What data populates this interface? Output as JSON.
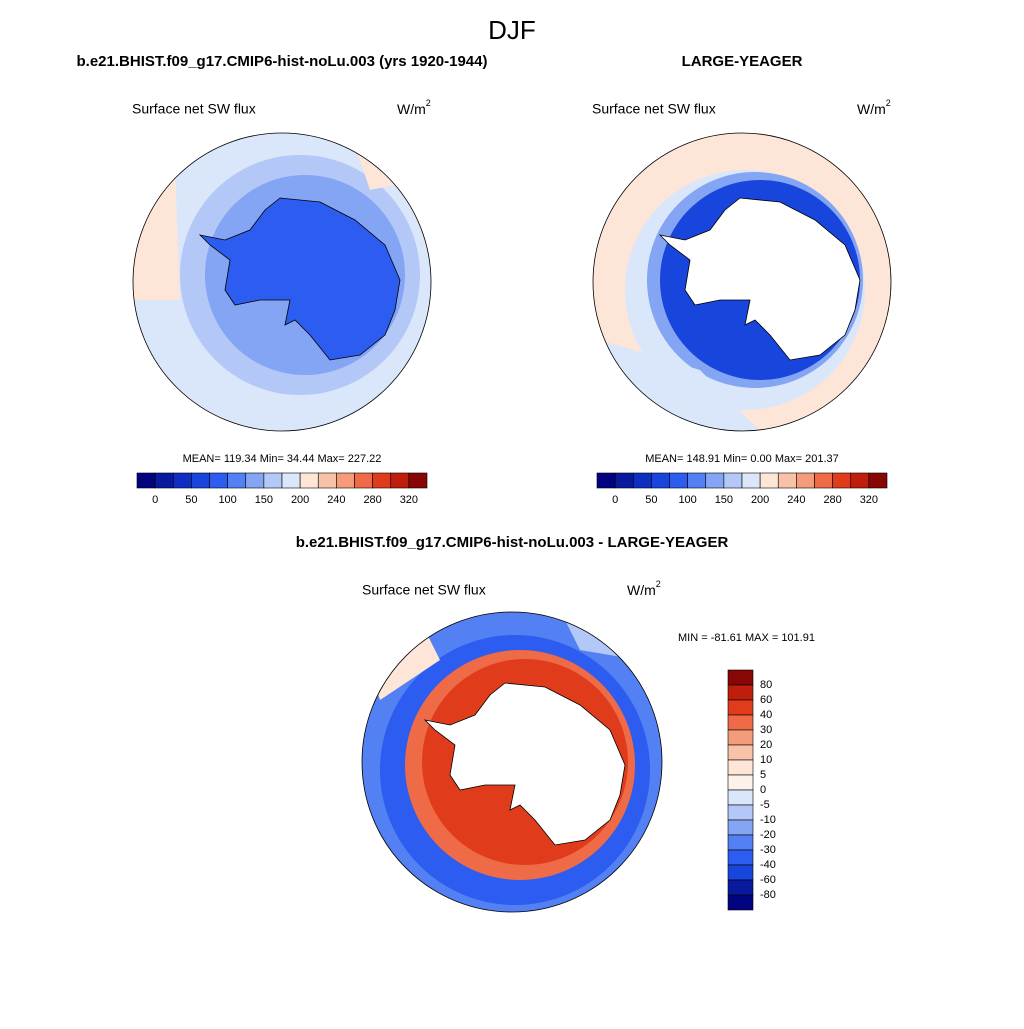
{
  "title": "DJF",
  "panels": [
    {
      "title": "b.e21.BHIST.f09_g17.CMIP6-hist-noLu.003 (yrs 1920-1944)",
      "subtitle": "Surface net SW flux",
      "units": "W/m",
      "units_exp": "2",
      "stats": "MEAN= 119.34  Min=  34.44  Max= 227.22",
      "colorbar": {
        "orientation": "horizontal",
        "labels": [
          0,
          50,
          100,
          150,
          200,
          240,
          280,
          320
        ],
        "colors": [
          "#02037f",
          "#0a1a9e",
          "#0f2fc2",
          "#1846dc",
          "#2c5cf0",
          "#5380f2",
          "#84a4f4",
          "#b4c8f8",
          "#dae6fa",
          "#fde6d8",
          "#f8c2a8",
          "#f49c7a",
          "#ef6a46",
          "#e03c1c",
          "#bf1e0c",
          "#870707"
        ]
      }
    },
    {
      "title": "LARGE-YEAGER",
      "subtitle": "Surface net SW flux",
      "units": "W/m",
      "units_exp": "2",
      "stats": "MEAN= 148.91  Min=   0.00  Max= 201.37",
      "colorbar": {
        "orientation": "horizontal",
        "labels": [
          0,
          50,
          100,
          150,
          200,
          240,
          280,
          320
        ],
        "colors": [
          "#02037f",
          "#0a1a9e",
          "#0f2fc2",
          "#1846dc",
          "#2c5cf0",
          "#5380f2",
          "#84a4f4",
          "#b4c8f8",
          "#dae6fa",
          "#fde6d8",
          "#f8c2a8",
          "#f49c7a",
          "#ef6a46",
          "#e03c1c",
          "#bf1e0c",
          "#870707"
        ]
      }
    },
    {
      "title": "b.e21.BHIST.f09_g17.CMIP6-hist-noLu.003 - LARGE-YEAGER",
      "subtitle": "Surface net SW flux",
      "units": "W/m",
      "units_exp": "2",
      "stats": "MIN = -81.61 MAX = 101.91",
      "colorbar": {
        "orientation": "vertical",
        "labels": [
          80,
          60,
          40,
          30,
          20,
          10,
          5,
          0,
          -5,
          -10,
          -20,
          -30,
          -40,
          -60,
          -80
        ],
        "colors": [
          "#870707",
          "#bf1e0c",
          "#e03c1c",
          "#ef6a46",
          "#f49c7a",
          "#f8c2a8",
          "#fde6d8",
          "#fdf2ea",
          "#dae6fa",
          "#b4c8f8",
          "#84a4f4",
          "#5380f2",
          "#2c5cf0",
          "#1846dc",
          "#0a1a9e",
          "#02037f"
        ]
      }
    }
  ]
}
